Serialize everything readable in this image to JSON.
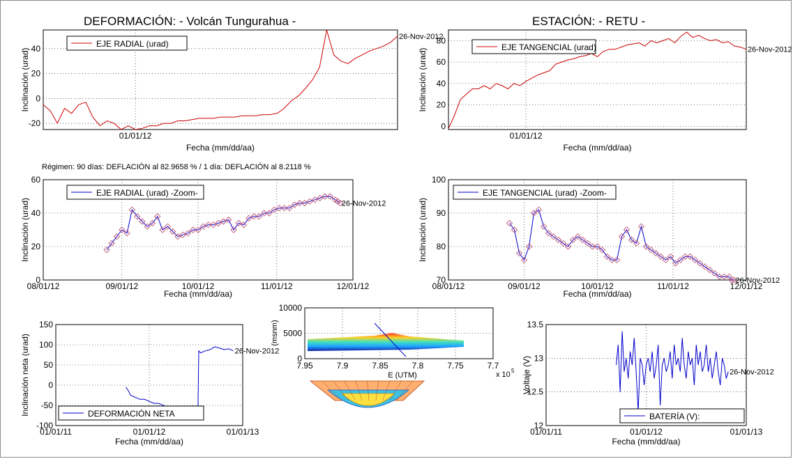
{
  "header": {
    "left_title": "DEFORMACIÓN: - Volcán Tungurahua -",
    "right_title": "ESTACIÓN: - RETU -",
    "regimen_note": "Régimen: 90 días: DEFLACIÓN al 82.9658 % / 1 día: DEFLACIÓN al 8.2118 %"
  },
  "colors": {
    "red_series": "#cc0000",
    "blue_series": "#0000cc",
    "marker": "#c06080",
    "grid": "#000000"
  },
  "chart_data": [
    {
      "id": "radial",
      "type": "line",
      "color": "red",
      "legend": "EJE RADIAL (urad)",
      "end_label": "26-Nov-2012",
      "xlabel": "Fecha (mm/dd/aa)",
      "ylabel": "Inclinación (urad)",
      "ylim": [
        -25,
        55
      ],
      "yticks": [
        "-20",
        "0",
        "20",
        "40"
      ],
      "ytick_values": [
        -20,
        0,
        20,
        40
      ],
      "xlim": [
        0,
        1
      ],
      "xticks": [
        "01/01/12"
      ],
      "xtick_values": [
        0.26
      ],
      "x": [
        0,
        0.02,
        0.04,
        0.06,
        0.08,
        0.1,
        0.12,
        0.14,
        0.16,
        0.18,
        0.2,
        0.22,
        0.24,
        0.26,
        0.28,
        0.3,
        0.32,
        0.34,
        0.36,
        0.38,
        0.4,
        0.42,
        0.44,
        0.46,
        0.48,
        0.5,
        0.52,
        0.54,
        0.56,
        0.58,
        0.6,
        0.62,
        0.64,
        0.66,
        0.68,
        0.7,
        0.72,
        0.74,
        0.76,
        0.78,
        0.8,
        0.82,
        0.84,
        0.86,
        0.88,
        0.9,
        0.92,
        0.94,
        0.96,
        0.98,
        1.0
      ],
      "y": [
        -5,
        -10,
        -20,
        -8,
        -12,
        -5,
        -3,
        -15,
        -22,
        -18,
        -20,
        -25,
        -22,
        -27,
        -24,
        -22,
        -22,
        -20,
        -20,
        -18,
        -18,
        -17,
        -16,
        -16,
        -16,
        -15,
        -15,
        -15,
        -14,
        -14,
        -14,
        -13,
        -13,
        -12,
        -8,
        -2,
        2,
        8,
        15,
        25,
        55,
        35,
        30,
        28,
        32,
        35,
        38,
        40,
        42,
        45,
        50
      ]
    },
    {
      "id": "tangencial",
      "type": "line",
      "color": "red",
      "legend": "EJE TANGENCIAL (urad)",
      "end_label": "26-Nov-2012",
      "xlabel": "Fecha (mm/dd/aa)",
      "ylabel": "Inclinación (urad)",
      "ylim": [
        -3,
        90
      ],
      "yticks": [
        "0",
        "20",
        "40",
        "60",
        "80"
      ],
      "ytick_values": [
        0,
        20,
        40,
        60,
        80
      ],
      "xlim": [
        0,
        1
      ],
      "xticks": [
        "01/01/12"
      ],
      "xtick_values": [
        0.26
      ],
      "x": [
        0,
        0.02,
        0.04,
        0.06,
        0.08,
        0.1,
        0.12,
        0.14,
        0.16,
        0.18,
        0.2,
        0.22,
        0.24,
        0.26,
        0.28,
        0.3,
        0.32,
        0.34,
        0.36,
        0.38,
        0.4,
        0.42,
        0.44,
        0.46,
        0.48,
        0.5,
        0.52,
        0.54,
        0.56,
        0.58,
        0.6,
        0.62,
        0.64,
        0.66,
        0.68,
        0.7,
        0.72,
        0.74,
        0.76,
        0.78,
        0.8,
        0.82,
        0.84,
        0.86,
        0.88,
        0.9,
        0.92,
        0.94,
        0.96,
        0.98,
        1.0
      ],
      "y": [
        -2,
        10,
        25,
        30,
        35,
        35,
        38,
        35,
        40,
        38,
        35,
        40,
        38,
        42,
        45,
        48,
        50,
        52,
        58,
        60,
        62,
        63,
        65,
        66,
        68,
        65,
        70,
        72,
        72,
        74,
        76,
        77,
        78,
        75,
        80,
        78,
        80,
        82,
        78,
        84,
        88,
        83,
        85,
        82,
        80,
        81,
        78,
        79,
        75,
        74,
        72
      ]
    },
    {
      "id": "radial_zoom",
      "type": "line",
      "color": "blue",
      "markers": true,
      "legend": "EJE RADIAL (urad) -Zoom-",
      "end_label": "26-Nov-2012",
      "xlabel": "Fecha (mm/dd/aa)",
      "ylabel": "Inclinación (urad)",
      "ylim": [
        0,
        60
      ],
      "yticks": [
        "0",
        "20",
        "40",
        "60"
      ],
      "ytick_values": [
        0,
        20,
        40,
        60
      ],
      "xlim": [
        0,
        122
      ],
      "xticks": [
        "08/01/12",
        "09/01/12",
        "10/01/12",
        "11/01/12",
        "12/01/12"
      ],
      "xtick_values": [
        0,
        31,
        61,
        92,
        122
      ],
      "x": [
        25,
        27,
        29,
        31,
        33,
        35,
        37,
        39,
        41,
        43,
        45,
        47,
        49,
        51,
        53,
        55,
        57,
        59,
        61,
        63,
        65,
        67,
        69,
        71,
        73,
        75,
        77,
        79,
        81,
        83,
        85,
        87,
        89,
        91,
        93,
        95,
        97,
        99,
        101,
        103,
        105,
        107,
        109,
        111,
        113,
        115,
        116,
        117
      ],
      "y": [
        18,
        22,
        26,
        30,
        28,
        42,
        38,
        35,
        32,
        34,
        38,
        30,
        32,
        29,
        26,
        27,
        28,
        30,
        30,
        32,
        33,
        33,
        34,
        35,
        36,
        30,
        34,
        33,
        37,
        38,
        38,
        40,
        40,
        42,
        43,
        43,
        43,
        45,
        46,
        46,
        47,
        48,
        49,
        50,
        50,
        48,
        47,
        46
      ]
    },
    {
      "id": "tangencial_zoom",
      "type": "line",
      "color": "blue",
      "markers": true,
      "legend": "EJE TANGENCIAL (urad) -Zoom-",
      "end_label": "26-Nov-2012",
      "xlabel": "Fecha (mm/dd/aa)",
      "ylabel": "Inclinación (urad)",
      "ylim": [
        70,
        100
      ],
      "yticks": [
        "70",
        "80",
        "90",
        "100"
      ],
      "ytick_values": [
        70,
        80,
        90,
        100
      ],
      "xlim": [
        0,
        122
      ],
      "xticks": [
        "08/01/12",
        "09/01/12",
        "10/01/12",
        "11/01/12",
        "12/01/12"
      ],
      "xtick_values": [
        0,
        31,
        61,
        92,
        122
      ],
      "x": [
        25,
        27,
        29,
        31,
        33,
        35,
        37,
        39,
        41,
        43,
        45,
        47,
        49,
        51,
        53,
        55,
        57,
        59,
        61,
        63,
        65,
        67,
        69,
        71,
        73,
        75,
        77,
        79,
        81,
        83,
        85,
        87,
        89,
        91,
        93,
        95,
        97,
        99,
        101,
        103,
        105,
        107,
        109,
        111,
        113,
        115,
        116,
        117
      ],
      "y": [
        87,
        85,
        78,
        76,
        80,
        90,
        91,
        86,
        84,
        83,
        82,
        81,
        80,
        82,
        83,
        82,
        81,
        80,
        80,
        79,
        77,
        76,
        76,
        83,
        85,
        82,
        81,
        86,
        80,
        79,
        78,
        77,
        76,
        77,
        75,
        76,
        77,
        77,
        76,
        75,
        74,
        73,
        72,
        71,
        71,
        71,
        70,
        70
      ]
    },
    {
      "id": "neta",
      "type": "line",
      "color": "blue",
      "legend": "DEFORMACIÓN NETA",
      "end_label": "26-Nov-2012",
      "xlabel": "Fecha (mm/dd/aa)",
      "ylabel": "Inclinación neta (urad)",
      "ylim": [
        -100,
        150
      ],
      "yticks": [
        "-100",
        "-50",
        "0",
        "50",
        "100",
        "150"
      ],
      "ytick_values": [
        -100,
        -50,
        0,
        50,
        100,
        150
      ],
      "xlim": [
        0,
        2
      ],
      "xticks": [
        "01/01/11",
        "01/01/12",
        "01/01/13"
      ],
      "xtick_values": [
        0,
        1,
        2
      ],
      "x": [
        0.75,
        0.78,
        0.8,
        0.85,
        0.9,
        0.95,
        1.0,
        1.05,
        1.1,
        1.15,
        1.2,
        1.25,
        1.3,
        1.35,
        1.4,
        1.45,
        1.5,
        1.52,
        1.53,
        1.55,
        1.6,
        1.65,
        1.7,
        1.75,
        1.8,
        1.85,
        1.9
      ],
      "y": [
        -5,
        -15,
        -25,
        -30,
        -35,
        -35,
        -40,
        -45,
        -45,
        -50,
        -55,
        -60,
        -62,
        -65,
        -70,
        -75,
        -80,
        -80,
        85,
        80,
        85,
        88,
        95,
        92,
        88,
        90,
        85
      ]
    },
    {
      "id": "bateria",
      "type": "line",
      "color": "blue",
      "legend": "BATERÍA (V):",
      "end_label": "26-Nov-2012",
      "xlabel": "Fecha (mm/dd/aa)",
      "ylabel": "Voltaje (V)",
      "ylim": [
        12,
        13.5
      ],
      "yticks": [
        "12",
        "12.5",
        "13",
        "13.5"
      ],
      "ytick_values": [
        12,
        12.5,
        13,
        13.5
      ],
      "xlim": [
        0,
        2
      ],
      "xticks": [
        "01/01/11",
        "01/01/12",
        "01/01/13"
      ],
      "xtick_values": [
        0,
        1,
        2
      ],
      "x": [
        0.7,
        0.72,
        0.74,
        0.76,
        0.78,
        0.8,
        0.82,
        0.84,
        0.86,
        0.88,
        0.9,
        0.92,
        0.94,
        0.96,
        0.98,
        1.0,
        1.02,
        1.04,
        1.06,
        1.08,
        1.1,
        1.12,
        1.14,
        1.16,
        1.18,
        1.2,
        1.22,
        1.24,
        1.26,
        1.28,
        1.3,
        1.32,
        1.34,
        1.36,
        1.38,
        1.4,
        1.42,
        1.44,
        1.46,
        1.48,
        1.5,
        1.52,
        1.54,
        1.56,
        1.58,
        1.6,
        1.62,
        1.64,
        1.66,
        1.68,
        1.7,
        1.72,
        1.74,
        1.76,
        1.78,
        1.8,
        1.82
      ],
      "y": [
        12.9,
        13.2,
        12.5,
        13.4,
        12.8,
        13.0,
        12.7,
        13.1,
        12.9,
        13.3,
        12.8,
        12.2,
        13.0,
        12.9,
        12.6,
        12.9,
        13.0,
        12.8,
        13.1,
        12.7,
        12.9,
        13.2,
        12.3,
        12.9,
        13.0,
        12.8,
        12.9,
        13.1,
        12.7,
        13.2,
        12.9,
        13.0,
        12.8,
        13.3,
        12.9,
        12.7,
        13.1,
        12.9,
        13.0,
        12.6,
        13.2,
        12.9,
        13.1,
        12.8,
        12.9,
        13.2,
        12.8,
        13.0,
        12.7,
        12.9,
        13.1,
        12.8,
        12.6,
        13.0,
        12.9,
        12.7,
        12.8
      ]
    },
    {
      "id": "topo",
      "type": "surface",
      "xlabel": "E (UTM)",
      "ylabel": "(msnm)",
      "exponent_label": "x 10",
      "exponent_power": "5",
      "ylim": [
        0,
        10000
      ],
      "yticks": [
        "0",
        "5000",
        "10000"
      ],
      "ytick_values": [
        0,
        5000,
        10000
      ],
      "xlim": [
        7.95,
        7.7
      ],
      "xticks": [
        "7.95",
        "7.9",
        "7.85",
        "7.8",
        "7.75",
        "7.7"
      ],
      "xtick_values": [
        7.95,
        7.9,
        7.85,
        7.8,
        7.75,
        7.7
      ]
    }
  ]
}
